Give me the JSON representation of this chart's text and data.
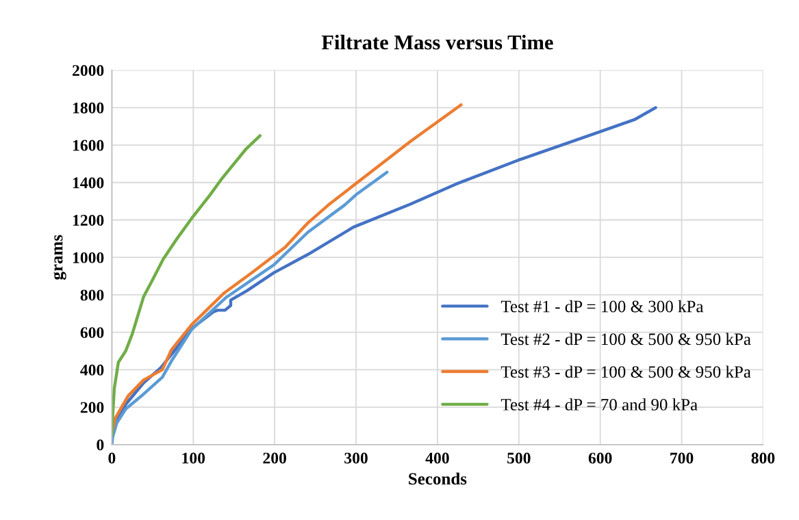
{
  "chart_data": {
    "type": "line",
    "title": "Filtrate Mass versus Time",
    "xlabel": "Seconds",
    "ylabel": "grams",
    "xlim": [
      0,
      800
    ],
    "xticks": [
      0,
      100,
      200,
      300,
      400,
      500,
      600,
      700,
      800
    ],
    "ylim": [
      0,
      2000
    ],
    "yticks": [
      0,
      200,
      400,
      600,
      800,
      1000,
      1200,
      1400,
      1600,
      1800,
      2000
    ],
    "grid": true,
    "legend": "bottom right",
    "marker": "none",
    "line_style": "solid",
    "series": [
      {
        "name": "Test #1 - dP = 100 & 300 kPa",
        "color": "#4472c4",
        "x": [
          0,
          1,
          5,
          17,
          39,
          60,
          73,
          98,
          125,
          130,
          139,
          146,
          146,
          166,
          199,
          241,
          297,
          367,
          423,
          499,
          600,
          643,
          668
        ],
        "values": [
          20,
          60,
          120,
          215,
          330,
          410,
          480,
          620,
          710,
          718,
          718,
          743,
          772,
          822,
          918,
          1016,
          1162,
          1285,
          1392,
          1519,
          1672,
          1738,
          1800
        ]
      },
      {
        "name": "Test #2 - dP = 100 & 500 & 950 kPa",
        "color": "#5b9bd5",
        "x": [
          0,
          1,
          6,
          17,
          39,
          62,
          73,
          98,
          140,
          199,
          241,
          286,
          300,
          338
        ],
        "values": [
          0,
          40,
          115,
          190,
          270,
          360,
          445,
          615,
          785,
          960,
          1135,
          1280,
          1335,
          1455
        ]
      },
      {
        "name": "Test #3 - dP = 100 & 500 & 950 kPa",
        "color": "#ed7d31",
        "x": [
          0,
          4,
          20,
          39,
          62,
          73,
          98,
          138,
          174,
          213,
          241,
          266,
          300,
          367,
          429
        ],
        "values": [
          60,
          140,
          260,
          345,
          400,
          505,
          640,
          810,
          925,
          1055,
          1185,
          1280,
          1395,
          1620,
          1815
        ]
      },
      {
        "name": "Test #4 - dP = 70 and 90 kPa",
        "color": "#70ad47",
        "x": [
          0,
          1,
          3,
          8,
          17,
          25,
          39,
          50,
          63,
          80,
          100,
          120,
          135,
          150,
          165,
          182
        ],
        "values": [
          50,
          150,
          300,
          440,
          500,
          590,
          790,
          880,
          990,
          1100,
          1220,
          1330,
          1420,
          1500,
          1580,
          1650
        ]
      }
    ]
  }
}
